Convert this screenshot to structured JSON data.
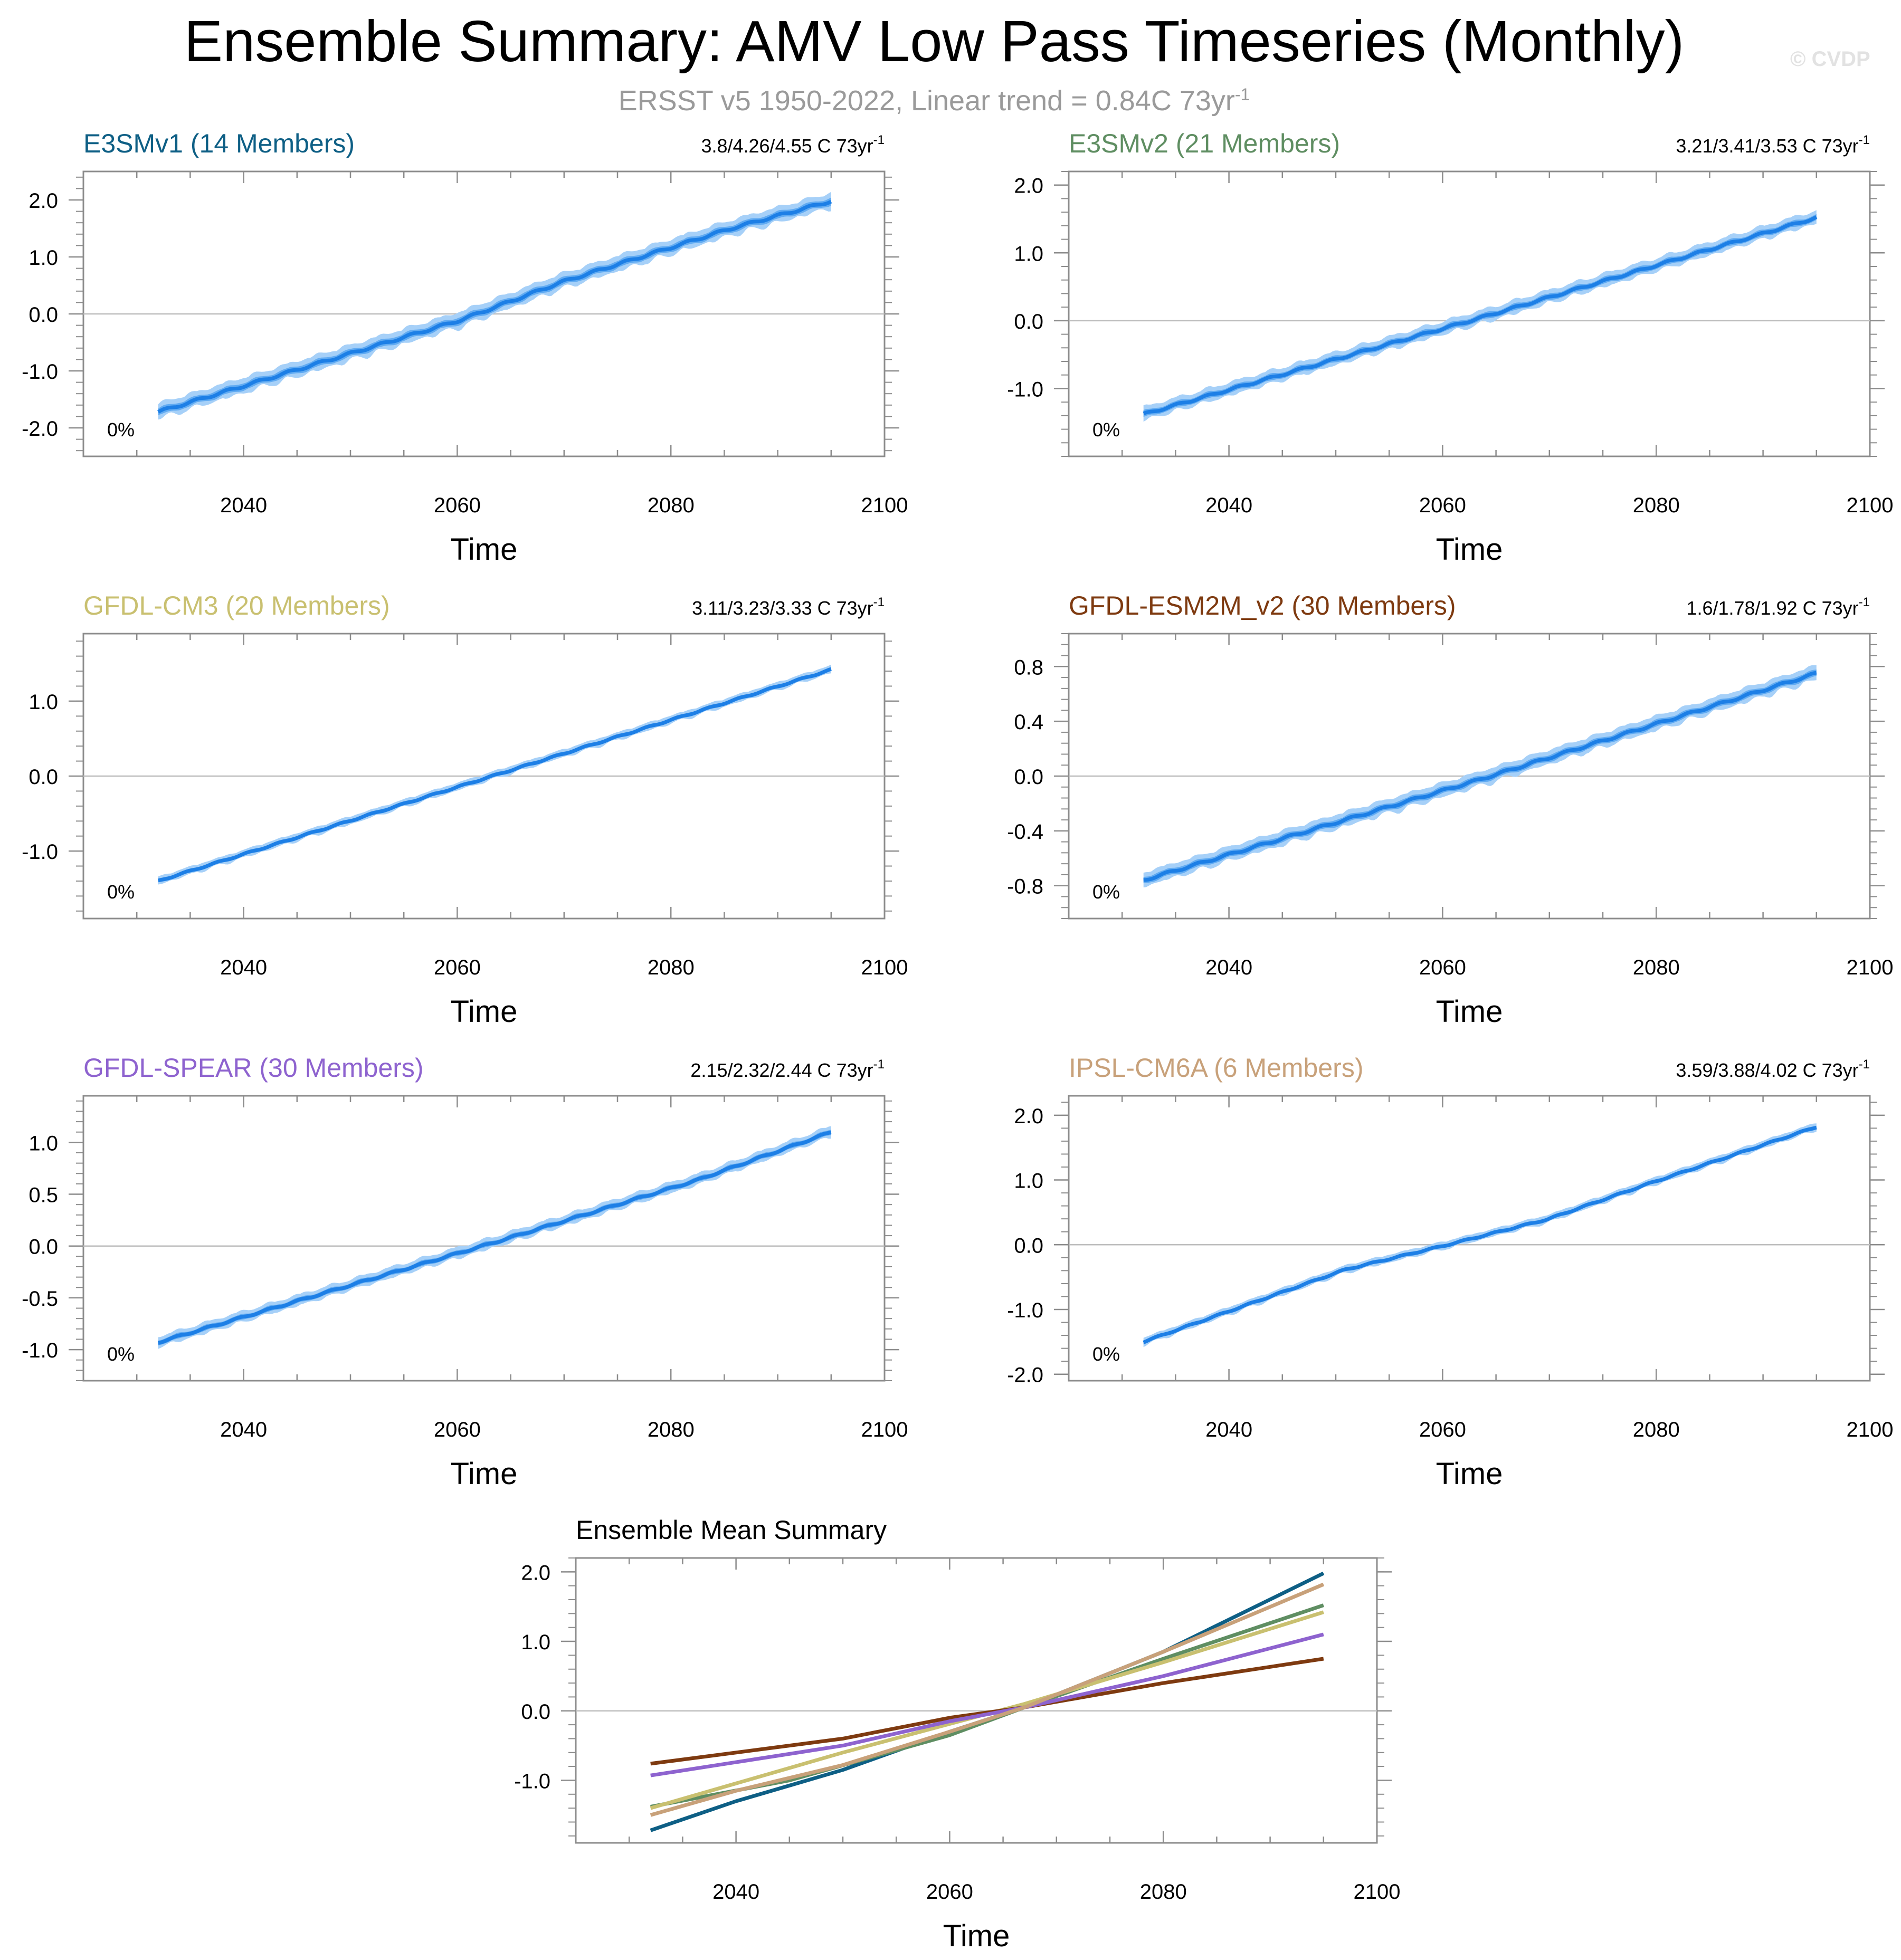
{
  "header": {
    "title": "Ensemble Summary: AMV Low Pass Timeseries (Monthly)",
    "subtitle_main": "ERSST v5 1950-2022, Linear trend = 0.84C 73yr",
    "subtitle_sup": "-1",
    "watermark": "© CVDP"
  },
  "colors": {
    "mean_line": "#1d7fe6",
    "sigma_band": "#4a9ff0",
    "range_band": "#a6d0f8",
    "zero_line": "#bdbdbd",
    "axes": "#8c8c8c"
  },
  "chart_data": [
    {
      "type": "area",
      "model": "E3SMv1",
      "title": "E3SMv1 (14 Members)",
      "title_color": "#0e5f85",
      "trend_label": "3.8/4.26/4.55 C 73yr",
      "trend_sup": "-1",
      "percent_label": "0%",
      "xlabel": "Time",
      "xlim": [
        2025,
        2100
      ],
      "ylim": [
        -2.5,
        2.5
      ],
      "x_ticks": [
        2040,
        2060,
        2080,
        2100
      ],
      "x_tick_labels": [
        "2040",
        "2060",
        "2080",
        "2100"
      ],
      "y_ticks": [
        -2,
        -1,
        0,
        1,
        2
      ],
      "y_tick_labels": [
        "-2.0",
        "-1.0",
        "0.0",
        "1.0",
        "2.0"
      ],
      "x_start": 2032,
      "x_end": 2095,
      "mean_start": -1.72,
      "mean_end": 1.98,
      "spread": 0.18,
      "shape": [
        [
          0,
          0
        ],
        [
          0.45,
          -0.05
        ],
        [
          0.6,
          0.06
        ],
        [
          0.85,
          0.07
        ],
        [
          1,
          0
        ]
      ]
    },
    {
      "type": "area",
      "model": "E3SMv2",
      "title": "E3SMv2 (21 Members)",
      "title_color": "#5f8e62",
      "trend_label": "3.21/3.41/3.53 C 73yr",
      "trend_sup": "-1",
      "percent_label": "0%",
      "xlabel": "Time",
      "xlim": [
        2025,
        2100
      ],
      "ylim": [
        -2.0,
        2.2
      ],
      "x_ticks": [
        2040,
        2060,
        2080,
        2100
      ],
      "x_tick_labels": [
        "2040",
        "2060",
        "2080",
        "2100"
      ],
      "y_ticks": [
        -1,
        0,
        1,
        2
      ],
      "y_tick_labels": [
        "-1.0",
        "0.0",
        "1.0",
        "2.0"
      ],
      "x_start": 2032,
      "x_end": 2095,
      "mean_start": -1.38,
      "mean_end": 1.52,
      "spread": 0.13,
      "shape": [
        [
          0,
          0
        ],
        [
          0.5,
          -0.03
        ],
        [
          1,
          0
        ]
      ]
    },
    {
      "type": "area",
      "model": "GFDL-CM3",
      "title": "GFDL-CM3 (20 Members)",
      "title_color": "#c9c070",
      "trend_label": "3.11/3.23/3.33 C 73yr",
      "trend_sup": "-1",
      "percent_label": "0%",
      "xlabel": "Time",
      "xlim": [
        2025,
        2100
      ],
      "ylim": [
        -1.9,
        1.9
      ],
      "x_ticks": [
        2040,
        2060,
        2080,
        2100
      ],
      "x_tick_labels": [
        "2040",
        "2060",
        "2080",
        "2100"
      ],
      "y_ticks": [
        -1,
        0,
        1
      ],
      "y_tick_labels": [
        "-1.0",
        "0.0",
        "1.0"
      ],
      "x_start": 2032,
      "x_end": 2095,
      "mean_start": -1.4,
      "mean_end": 1.42,
      "spread": 0.07,
      "shape": [
        [
          0,
          0
        ],
        [
          1,
          0
        ]
      ]
    },
    {
      "type": "area",
      "model": "GFDL-ESM2M_v2",
      "title": "GFDL-ESM2M_v2 (30 Members)",
      "title_color": "#7e3a10",
      "trend_label": "1.6/1.78/1.92 C 73yr",
      "trend_sup": "-1",
      "percent_label": "0%",
      "xlabel": "Time",
      "xlim": [
        2025,
        2100
      ],
      "ylim": [
        -1.04,
        1.04
      ],
      "x_ticks": [
        2040,
        2060,
        2080,
        2100
      ],
      "x_tick_labels": [
        "2040",
        "2060",
        "2080",
        "2100"
      ],
      "y_ticks": [
        -0.8,
        -0.4,
        0,
        0.4,
        0.8
      ],
      "y_tick_labels": [
        "-0.8",
        "-0.4",
        "0.0",
        "0.4",
        "0.8"
      ],
      "x_start": 2032,
      "x_end": 2095,
      "mean_start": -0.76,
      "mean_end": 0.75,
      "spread": 0.07,
      "shape": [
        [
          0,
          0
        ],
        [
          0.5,
          -0.02
        ],
        [
          1,
          0
        ]
      ]
    },
    {
      "type": "area",
      "model": "GFDL-SPEAR",
      "title": "GFDL-SPEAR (30 Members)",
      "title_color": "#8e63cf",
      "trend_label": "2.15/2.32/2.44 C 73yr",
      "trend_sup": "-1",
      "percent_label": "0%",
      "xlabel": "Time",
      "xlim": [
        2025,
        2100
      ],
      "ylim": [
        -1.3,
        1.45
      ],
      "x_ticks": [
        2040,
        2060,
        2080,
        2100
      ],
      "x_tick_labels": [
        "2040",
        "2060",
        "2080",
        "2100"
      ],
      "y_ticks": [
        -1,
        -0.5,
        0,
        0.5,
        1
      ],
      "y_tick_labels": [
        "-1.0",
        "-0.5",
        "0.0",
        "0.5",
        "1.0"
      ],
      "x_start": 2032,
      "x_end": 2095,
      "mean_start": -0.93,
      "mean_end": 1.1,
      "spread": 0.07,
      "shape": [
        [
          0,
          0
        ],
        [
          0.5,
          -0.05
        ],
        [
          0.8,
          -0.06
        ],
        [
          1,
          0
        ]
      ]
    },
    {
      "type": "area",
      "model": "IPSL-CM6A",
      "title": "IPSL-CM6A (6 Members)",
      "title_color": "#c8a17a",
      "trend_label": "3.59/3.88/4.02 C 73yr",
      "trend_sup": "-1",
      "percent_label": "0%",
      "xlabel": "Time",
      "xlim": [
        2025,
        2100
      ],
      "ylim": [
        -2.1,
        2.3
      ],
      "x_ticks": [
        2040,
        2060,
        2080,
        2100
      ],
      "x_tick_labels": [
        "2040",
        "2060",
        "2080",
        "2100"
      ],
      "y_ticks": [
        -2,
        -1,
        0,
        1,
        2
      ],
      "y_tick_labels": [
        "-2.0",
        "-1.0",
        "0.0",
        "1.0",
        "2.0"
      ],
      "x_start": 2032,
      "x_end": 2095,
      "mean_start": -1.5,
      "mean_end": 1.82,
      "spread": 0.08,
      "shape": [
        [
          0,
          0
        ],
        [
          0.3,
          0.12
        ],
        [
          0.45,
          0
        ],
        [
          0.6,
          -0.1
        ],
        [
          0.75,
          -0.05
        ],
        [
          1,
          0
        ]
      ]
    },
    {
      "type": "line",
      "model": "ensemble-mean",
      "title": "Ensemble Mean Summary",
      "title_color": "#000000",
      "xlabel": "Time",
      "xlim": [
        2025,
        2100
      ],
      "ylim": [
        -1.9,
        2.2
      ],
      "x_ticks": [
        2040,
        2060,
        2080,
        2100
      ],
      "x_tick_labels": [
        "2040",
        "2060",
        "2080",
        "2100"
      ],
      "y_ticks": [
        -1,
        0,
        1,
        2
      ],
      "y_tick_labels": [
        "-1.0",
        "0.0",
        "1.0",
        "2.0"
      ],
      "series": [
        {
          "name": "E3SMv1",
          "color": "#0e5f85",
          "x": [
            2032,
            2040,
            2050,
            2060,
            2067,
            2080,
            2095
          ],
          "values": [
            -1.72,
            -1.3,
            -0.85,
            -0.3,
            0.05,
            0.85,
            1.98
          ]
        },
        {
          "name": "E3SMv2",
          "color": "#5f8e62",
          "x": [
            2032,
            2045,
            2060,
            2067,
            2080,
            2095
          ],
          "values": [
            -1.38,
            -1.0,
            -0.35,
            0.05,
            0.75,
            1.52
          ]
        },
        {
          "name": "GFDL-CM3",
          "color": "#c9c070",
          "x": [
            2032,
            2050,
            2067,
            2080,
            2095
          ],
          "values": [
            -1.4,
            -0.6,
            0.1,
            0.7,
            1.42
          ]
        },
        {
          "name": "GFDL-ESM2M_v2",
          "color": "#7e3a10",
          "x": [
            2032,
            2050,
            2060,
            2067,
            2080,
            2095
          ],
          "values": [
            -0.76,
            -0.4,
            -0.1,
            0.05,
            0.4,
            0.75
          ]
        },
        {
          "name": "GFDL-SPEAR",
          "color": "#8e63cf",
          "x": [
            2032,
            2050,
            2060,
            2067,
            2080,
            2095
          ],
          "values": [
            -0.93,
            -0.5,
            -0.15,
            0.05,
            0.5,
            1.1
          ]
        },
        {
          "name": "IPSL-CM6A",
          "color": "#c8a17a",
          "x": [
            2032,
            2040,
            2050,
            2060,
            2067,
            2080,
            2095
          ],
          "values": [
            -1.5,
            -1.15,
            -0.78,
            -0.3,
            0.05,
            0.85,
            1.82
          ]
        }
      ]
    }
  ]
}
